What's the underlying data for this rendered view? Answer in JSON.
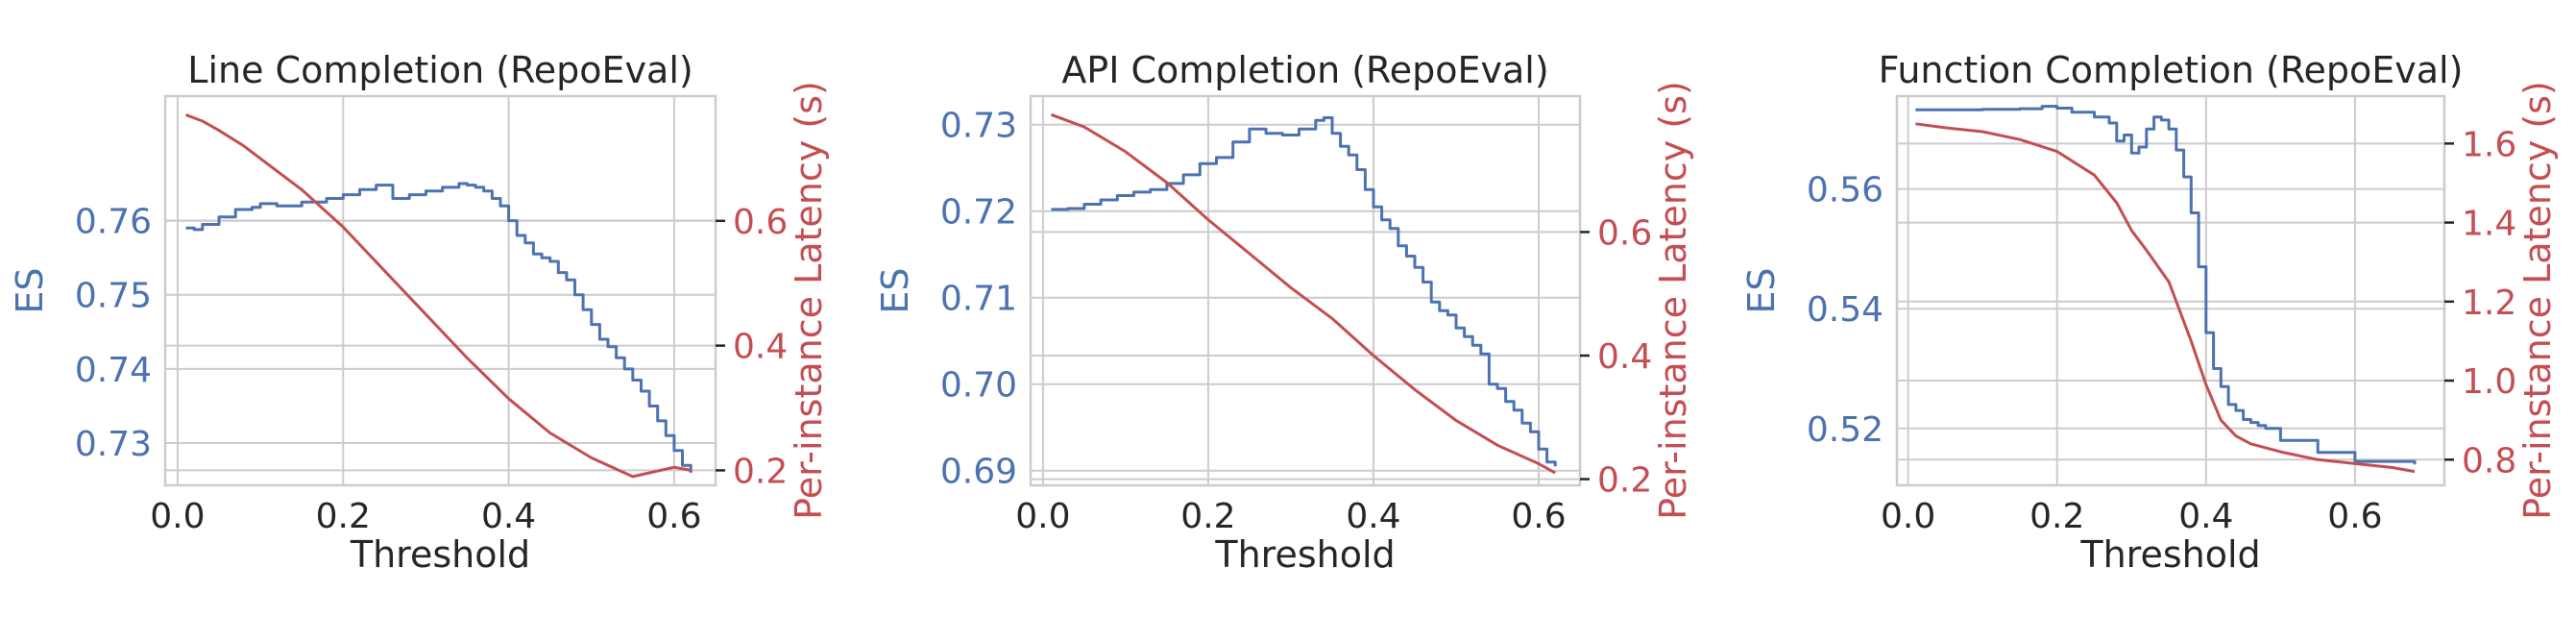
{
  "colors": {
    "es": "#4c72b0",
    "latency": "#c44e52",
    "grid": "#cccccc",
    "text": "#262626",
    "frame": "#cccccc"
  },
  "chart_data": [
    {
      "type": "line",
      "title": "Line Completion (RepoEval)",
      "xlabel": "Threshold",
      "ylabel": "ES",
      "y2label": "Per-instance Latency (s)",
      "grid": true,
      "xlim": [
        -0.015,
        0.65
      ],
      "xticks": [
        0.0,
        0.2,
        0.4,
        0.6
      ],
      "xtick_labels": [
        "0.0",
        "0.2",
        "0.4",
        "0.6"
      ],
      "ylim": [
        0.7243,
        0.7768
      ],
      "yticks": [
        0.73,
        0.74,
        0.75,
        0.76
      ],
      "ytick_labels": [
        "0.73",
        "0.74",
        "0.75",
        "0.76"
      ],
      "y2lim": [
        0.176,
        0.8
      ],
      "y2ticks": [
        0.2,
        0.4,
        0.6
      ],
      "y2tick_labels": [
        "0.2",
        "0.4",
        "0.6"
      ],
      "series": [
        {
          "name": "ES",
          "axis": "left",
          "step": true,
          "x": [
            0.01,
            0.02,
            0.03,
            0.05,
            0.07,
            0.09,
            0.1,
            0.12,
            0.15,
            0.18,
            0.2,
            0.22,
            0.24,
            0.26,
            0.28,
            0.3,
            0.32,
            0.34,
            0.35,
            0.36,
            0.37,
            0.38,
            0.39,
            0.4,
            0.41,
            0.42,
            0.43,
            0.44,
            0.45,
            0.46,
            0.47,
            0.48,
            0.49,
            0.5,
            0.51,
            0.52,
            0.53,
            0.54,
            0.55,
            0.56,
            0.57,
            0.58,
            0.59,
            0.6,
            0.61,
            0.62
          ],
          "y": [
            0.759,
            0.7588,
            0.7595,
            0.7605,
            0.7615,
            0.7618,
            0.7623,
            0.762,
            0.7625,
            0.763,
            0.7635,
            0.7642,
            0.7648,
            0.763,
            0.7635,
            0.764,
            0.7645,
            0.765,
            0.7648,
            0.7645,
            0.764,
            0.763,
            0.762,
            0.76,
            0.758,
            0.757,
            0.7555,
            0.755,
            0.7545,
            0.753,
            0.752,
            0.75,
            0.748,
            0.746,
            0.744,
            0.743,
            0.7415,
            0.74,
            0.7385,
            0.737,
            0.735,
            0.733,
            0.731,
            0.729,
            0.727,
            0.726
          ]
        },
        {
          "name": "Per-instance Latency (s)",
          "axis": "right",
          "step": false,
          "x": [
            0.01,
            0.03,
            0.05,
            0.08,
            0.1,
            0.15,
            0.2,
            0.25,
            0.3,
            0.35,
            0.4,
            0.45,
            0.5,
            0.55,
            0.6,
            0.62
          ],
          "y": [
            0.77,
            0.76,
            0.745,
            0.72,
            0.7,
            0.65,
            0.59,
            0.52,
            0.45,
            0.38,
            0.315,
            0.26,
            0.22,
            0.19,
            0.205,
            0.2
          ]
        }
      ]
    },
    {
      "type": "line",
      "title": "API Completion (RepoEval)",
      "xlabel": "Threshold",
      "ylabel": "ES",
      "y2label": "Per-instance Latency (s)",
      "grid": true,
      "xlim": [
        -0.015,
        0.65
      ],
      "xticks": [
        0.0,
        0.2,
        0.4,
        0.6
      ],
      "xtick_labels": [
        "0.0",
        "0.2",
        "0.4",
        "0.6"
      ],
      "ylim": [
        0.6883,
        0.7333
      ],
      "yticks": [
        0.69,
        0.7,
        0.71,
        0.72,
        0.73
      ],
      "ytick_labels": [
        "0.69",
        "0.70",
        "0.71",
        "0.72",
        "0.73"
      ],
      "y2lim": [
        0.19,
        0.82
      ],
      "y2ticks": [
        0.2,
        0.4,
        0.6
      ],
      "y2tick_labels": [
        "0.2",
        "0.4",
        "0.6"
      ],
      "series": [
        {
          "name": "ES",
          "axis": "left",
          "step": true,
          "x": [
            0.01,
            0.03,
            0.05,
            0.07,
            0.09,
            0.11,
            0.13,
            0.15,
            0.17,
            0.19,
            0.21,
            0.23,
            0.25,
            0.27,
            0.29,
            0.31,
            0.33,
            0.34,
            0.35,
            0.36,
            0.37,
            0.38,
            0.39,
            0.4,
            0.41,
            0.42,
            0.43,
            0.44,
            0.45,
            0.46,
            0.47,
            0.48,
            0.49,
            0.5,
            0.51,
            0.52,
            0.53,
            0.54,
            0.55,
            0.56,
            0.57,
            0.58,
            0.59,
            0.6,
            0.61,
            0.62
          ],
          "y": [
            0.7202,
            0.7203,
            0.7208,
            0.7213,
            0.7218,
            0.7222,
            0.7225,
            0.7232,
            0.7242,
            0.7255,
            0.7262,
            0.728,
            0.7295,
            0.729,
            0.7288,
            0.7295,
            0.7305,
            0.7308,
            0.729,
            0.7275,
            0.7265,
            0.7248,
            0.7225,
            0.7205,
            0.719,
            0.718,
            0.716,
            0.7148,
            0.7135,
            0.7118,
            0.7095,
            0.7085,
            0.708,
            0.7065,
            0.7055,
            0.7045,
            0.7035,
            0.7,
            0.6995,
            0.698,
            0.697,
            0.6955,
            0.6945,
            0.6925,
            0.691,
            0.6905
          ]
        },
        {
          "name": "Per-instance Latency (s)",
          "axis": "right",
          "step": false,
          "x": [
            0.01,
            0.05,
            0.1,
            0.15,
            0.2,
            0.25,
            0.3,
            0.35,
            0.4,
            0.45,
            0.5,
            0.55,
            0.6,
            0.62
          ],
          "y": [
            0.79,
            0.77,
            0.73,
            0.68,
            0.62,
            0.565,
            0.51,
            0.46,
            0.4,
            0.345,
            0.295,
            0.255,
            0.225,
            0.21
          ]
        }
      ]
    },
    {
      "type": "line",
      "title": "Function Completion (RepoEval)",
      "xlabel": "Threshold",
      "ylabel": "ES",
      "y2label": "Per-instance Latency (s)",
      "grid": true,
      "xlim": [
        -0.015,
        0.72
      ],
      "xticks": [
        0.0,
        0.2,
        0.4,
        0.6
      ],
      "xtick_labels": [
        "0.0",
        "0.2",
        "0.4",
        "0.6"
      ],
      "ylim": [
        0.5105,
        0.5755
      ],
      "yticks": [
        0.52,
        0.54,
        0.56
      ],
      "ytick_labels": [
        "0.52",
        "0.54",
        "0.56"
      ],
      "y2lim": [
        0.735,
        1.72
      ],
      "y2ticks": [
        0.8,
        1.0,
        1.2,
        1.4,
        1.6
      ],
      "y2tick_labels": [
        "0.8",
        "1.0",
        "1.2",
        "1.4",
        "1.6"
      ],
      "series": [
        {
          "name": "ES",
          "axis": "left",
          "step": true,
          "x": [
            0.01,
            0.05,
            0.1,
            0.15,
            0.18,
            0.2,
            0.22,
            0.25,
            0.27,
            0.28,
            0.29,
            0.3,
            0.31,
            0.32,
            0.33,
            0.34,
            0.35,
            0.36,
            0.37,
            0.38,
            0.39,
            0.4,
            0.41,
            0.42,
            0.43,
            0.44,
            0.45,
            0.46,
            0.47,
            0.48,
            0.5,
            0.55,
            0.6,
            0.65,
            0.68
          ],
          "y": [
            0.5732,
            0.5732,
            0.5733,
            0.5734,
            0.5738,
            0.5735,
            0.5728,
            0.572,
            0.571,
            0.568,
            0.569,
            0.566,
            0.567,
            0.57,
            0.572,
            0.5715,
            0.57,
            0.5665,
            0.562,
            0.556,
            0.547,
            0.536,
            0.53,
            0.527,
            0.524,
            0.523,
            0.5215,
            0.521,
            0.5205,
            0.52,
            0.518,
            0.516,
            0.5145,
            0.5145,
            0.514
          ]
        },
        {
          "name": "Per-instance Latency (s)",
          "axis": "right",
          "step": false,
          "x": [
            0.01,
            0.05,
            0.1,
            0.15,
            0.2,
            0.25,
            0.28,
            0.3,
            0.32,
            0.35,
            0.38,
            0.4,
            0.42,
            0.44,
            0.46,
            0.48,
            0.5,
            0.55,
            0.6,
            0.65,
            0.68
          ],
          "y": [
            1.65,
            1.64,
            1.63,
            1.61,
            1.58,
            1.52,
            1.45,
            1.38,
            1.33,
            1.25,
            1.1,
            0.99,
            0.9,
            0.86,
            0.84,
            0.83,
            0.82,
            0.8,
            0.79,
            0.78,
            0.77
          ]
        }
      ]
    }
  ]
}
